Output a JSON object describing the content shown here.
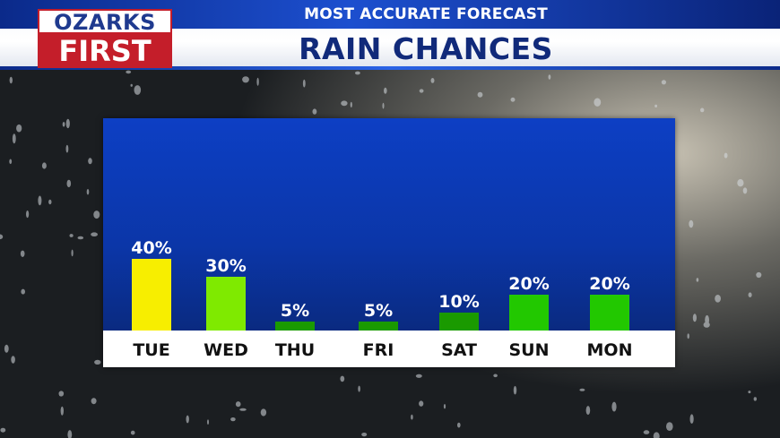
{
  "header": {
    "logo_top": "OZARKS",
    "logo_bottom": "FIRST",
    "subtitle": "MOST ACCURATE FORECAST",
    "title": "RAIN CHANCES"
  },
  "colors": {
    "brand_blue": "#112a7a",
    "brand_red": "#c41e2a",
    "plot_blue": "#0d3fc4"
  },
  "chart_data": {
    "type": "bar",
    "categories": [
      "TUE",
      "WED",
      "THU",
      "FRI",
      "SAT",
      "SUN",
      "MON"
    ],
    "values": [
      40,
      30,
      5,
      5,
      10,
      20,
      20
    ],
    "labels": [
      "40%",
      "30%",
      "5%",
      "5%",
      "10%",
      "20%",
      "20%"
    ],
    "bar_colors": [
      "#f7ee00",
      "#7fea00",
      "#1a9a00",
      "#1a9a00",
      "#1a9a00",
      "#22c800",
      "#22c800"
    ],
    "ylim": [
      0,
      100
    ],
    "unit": "%",
    "grid": false,
    "legend": "none"
  }
}
